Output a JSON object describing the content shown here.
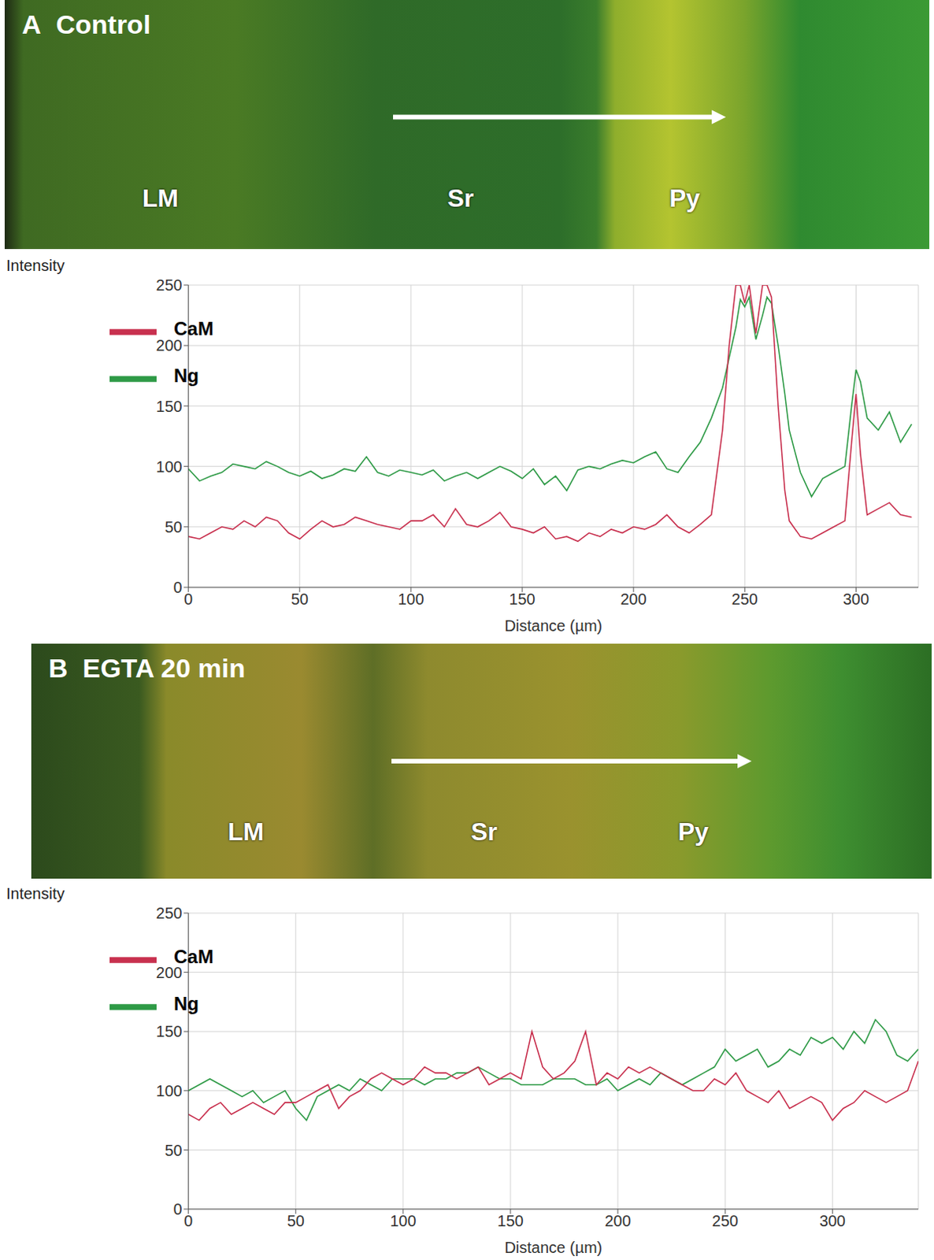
{
  "chart_data": [
    {
      "panel": "A",
      "title": "Control",
      "type": "line",
      "annotations": [
        "LM",
        "Sr",
        "Py"
      ],
      "y_label": "Intensity",
      "x_label": "Distance (µm)",
      "x": [
        0,
        5,
        10,
        15,
        20,
        25,
        30,
        35,
        40,
        45,
        50,
        55,
        60,
        65,
        70,
        75,
        80,
        85,
        90,
        95,
        100,
        105,
        110,
        115,
        120,
        125,
        130,
        135,
        140,
        145,
        150,
        155,
        160,
        165,
        170,
        175,
        180,
        185,
        190,
        195,
        200,
        205,
        210,
        215,
        220,
        225,
        230,
        235,
        240,
        243,
        246,
        248,
        250,
        252,
        255,
        258,
        260,
        262,
        265,
        268,
        270,
        275,
        280,
        285,
        290,
        295,
        298,
        300,
        302,
        305,
        310,
        315,
        320,
        325
      ],
      "series": [
        {
          "name": "Ng",
          "color": "#2e9a46",
          "values": [
            98,
            88,
            92,
            95,
            102,
            100,
            98,
            104,
            100,
            95,
            92,
            96,
            90,
            93,
            98,
            96,
            108,
            95,
            92,
            97,
            95,
            93,
            97,
            88,
            92,
            95,
            90,
            95,
            100,
            96,
            90,
            98,
            85,
            92,
            80,
            97,
            100,
            98,
            102,
            105,
            103,
            108,
            112,
            98,
            95,
            108,
            120,
            140,
            165,
            190,
            215,
            238,
            232,
            240,
            205,
            225,
            240,
            235,
            200,
            160,
            130,
            95,
            75,
            90,
            95,
            100,
            150,
            180,
            170,
            140,
            130,
            145,
            120,
            135
          ]
        },
        {
          "name": "CaM",
          "color": "#c8304e",
          "values": [
            42,
            40,
            45,
            50,
            48,
            55,
            50,
            58,
            55,
            45,
            40,
            48,
            55,
            50,
            52,
            58,
            55,
            52,
            50,
            48,
            55,
            55,
            60,
            50,
            65,
            52,
            50,
            55,
            62,
            50,
            48,
            45,
            50,
            40,
            42,
            38,
            45,
            42,
            48,
            45,
            50,
            48,
            52,
            60,
            50,
            45,
            52,
            60,
            130,
            200,
            250,
            250,
            235,
            250,
            210,
            250,
            250,
            240,
            150,
            80,
            55,
            42,
            40,
            45,
            50,
            55,
            120,
            160,
            110,
            60,
            65,
            70,
            60,
            58
          ]
        }
      ],
      "xlim": [
        0,
        328
      ],
      "xticks": [
        0,
        50,
        100,
        150,
        200,
        250,
        300
      ],
      "ylim": [
        0,
        250
      ],
      "yticks": [
        0,
        50,
        100,
        150,
        200,
        250
      ],
      "grid": true,
      "legend": "upper left"
    },
    {
      "panel": "B",
      "title": "EGTA 20 min",
      "type": "line",
      "annotations": [
        "LM",
        "Sr",
        "Py"
      ],
      "y_label": "Intensity",
      "x_label": "Distance (µm)",
      "x": [
        0,
        5,
        10,
        15,
        20,
        25,
        30,
        35,
        40,
        45,
        50,
        55,
        60,
        65,
        70,
        75,
        80,
        85,
        90,
        95,
        100,
        105,
        110,
        115,
        120,
        125,
        130,
        135,
        140,
        145,
        150,
        155,
        160,
        165,
        170,
        175,
        180,
        185,
        190,
        195,
        200,
        205,
        210,
        215,
        220,
        225,
        230,
        235,
        240,
        245,
        250,
        255,
        260,
        265,
        270,
        275,
        280,
        285,
        290,
        295,
        300,
        305,
        310,
        315,
        320,
        325,
        330,
        335,
        340
      ],
      "series": [
        {
          "name": "Ng",
          "color": "#2e9a46",
          "values": [
            100,
            105,
            110,
            105,
            100,
            95,
            100,
            90,
            95,
            100,
            85,
            75,
            95,
            100,
            105,
            100,
            110,
            105,
            100,
            110,
            110,
            110,
            105,
            110,
            110,
            115,
            115,
            120,
            115,
            110,
            110,
            105,
            105,
            105,
            110,
            110,
            110,
            105,
            105,
            110,
            100,
            105,
            110,
            105,
            115,
            110,
            105,
            110,
            115,
            120,
            135,
            125,
            130,
            135,
            120,
            125,
            135,
            130,
            145,
            140,
            145,
            135,
            150,
            140,
            160,
            150,
            130,
            125,
            135
          ]
        },
        {
          "name": "CaM",
          "color": "#c8304e",
          "values": [
            80,
            75,
            85,
            90,
            80,
            85,
            90,
            85,
            80,
            90,
            90,
            95,
            100,
            105,
            85,
            95,
            100,
            110,
            115,
            110,
            105,
            110,
            120,
            115,
            115,
            110,
            115,
            120,
            105,
            110,
            115,
            110,
            150,
            120,
            110,
            115,
            125,
            150,
            105,
            115,
            110,
            120,
            115,
            120,
            115,
            110,
            105,
            100,
            100,
            110,
            105,
            115,
            100,
            95,
            90,
            100,
            85,
            90,
            95,
            90,
            75,
            85,
            90,
            100,
            95,
            90,
            95,
            100,
            125
          ]
        }
      ],
      "xlim": [
        0,
        340
      ],
      "xticks": [
        0,
        50,
        100,
        150,
        200,
        250,
        300
      ],
      "ylim": [
        0,
        250
      ],
      "yticks": [
        0,
        50,
        100,
        150,
        200,
        250
      ],
      "grid": true,
      "legend": "upper left"
    }
  ]
}
